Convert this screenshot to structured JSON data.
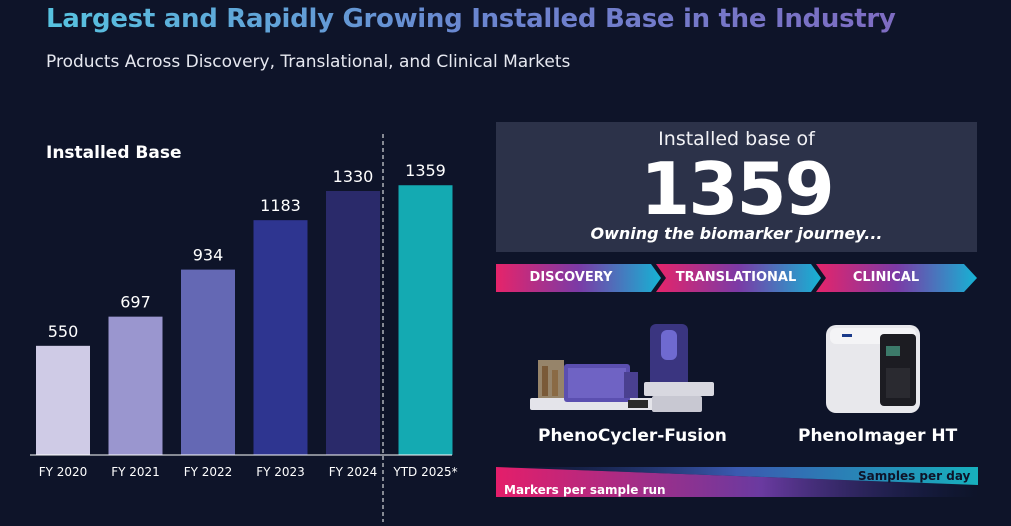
{
  "header": {
    "title": "Largest and Rapidly Growing Installed Base in the Industry",
    "subtitle": "Products Across Discovery, Translational, and Clinical Markets"
  },
  "chart_data": {
    "type": "bar",
    "title": "Installed Base",
    "categories": [
      "FY 2020",
      "FY 2021",
      "FY 2022",
      "FY 2023",
      "FY 2024",
      "YTD 2025*"
    ],
    "values": [
      550,
      697,
      934,
      1183,
      1330,
      1359
    ],
    "colors": [
      "#cfcbe6",
      "#9a96cf",
      "#6468b4",
      "#2e3590",
      "#2a2a6a",
      "#14aab2"
    ],
    "ylim": [
      0,
      1500
    ],
    "grid": false,
    "legend": "none"
  },
  "panel": {
    "label": "Installed base of",
    "value": "1359",
    "tagline": "Owning the biomarker journey..."
  },
  "journey": [
    "DISCOVERY",
    "TRANSLATIONAL",
    "CLINICAL"
  ],
  "products": [
    {
      "name": "PhenoCycler-Fusion"
    },
    {
      "name": "PhenoImager HT"
    }
  ],
  "scale": {
    "left_label": "Markers per sample run",
    "right_label": "Samples per day"
  },
  "colors": {
    "background": "#0e1429",
    "panel": "#2c3249",
    "magenta": "#e0246a",
    "teal": "#17a9bd"
  }
}
